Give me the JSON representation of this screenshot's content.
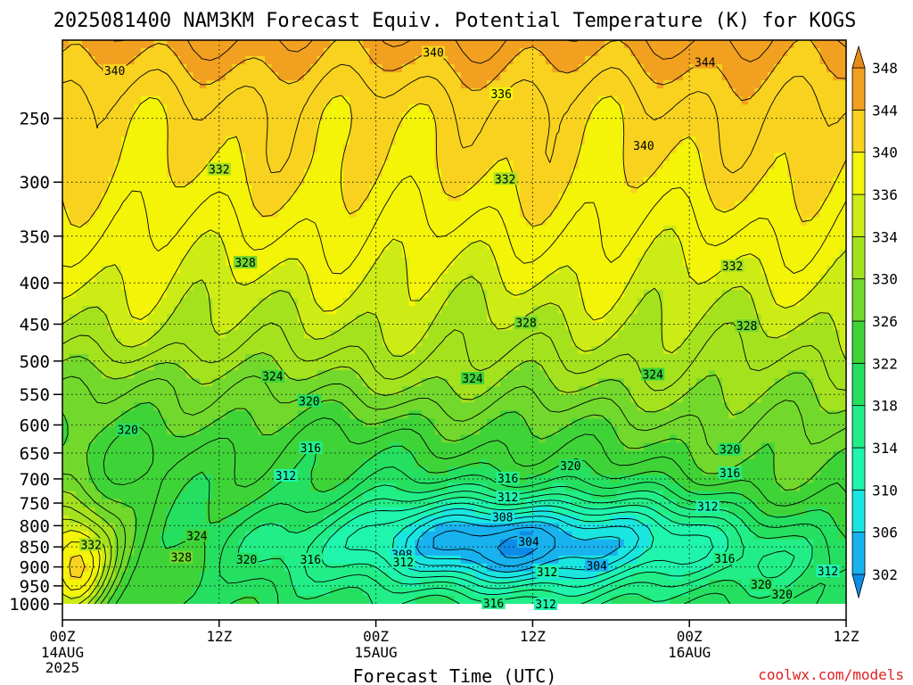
{
  "chart_data": {
    "type": "heatmap",
    "title": "2025081400 NAM3KM Forecast Equiv. Potential Temperature (K) for KOGS",
    "xlabel": "Forecast Time (UTC)",
    "ylabel": "",
    "credit": "coolwx.com/models",
    "x_ticks": [
      {
        "hour": 0,
        "label": "00Z",
        "sub": [
          "14AUG",
          "2025"
        ]
      },
      {
        "hour": 12,
        "label": "12Z",
        "sub": []
      },
      {
        "hour": 24,
        "label": "00Z",
        "sub": [
          "15AUG"
        ]
      },
      {
        "hour": 36,
        "label": "12Z",
        "sub": []
      },
      {
        "hour": 48,
        "label": "00Z",
        "sub": [
          "16AUG"
        ]
      },
      {
        "hour": 60,
        "label": "12Z",
        "sub": []
      }
    ],
    "xlim": [
      0,
      60
    ],
    "y_scale": "log",
    "ylim": [
      1000,
      200
    ],
    "y_ticks": [
      250,
      300,
      350,
      400,
      450,
      500,
      550,
      600,
      650,
      700,
      750,
      800,
      850,
      900,
      950,
      1000
    ],
    "colorbar": {
      "levels": [
        302,
        306,
        310,
        314,
        318,
        322,
        326,
        330,
        334,
        336,
        340,
        344,
        348
      ],
      "colors": [
        "#0c8ce6",
        "#18b2ef",
        "#1ae6e1",
        "#1ff5ad",
        "#22ee88",
        "#25e060",
        "#3ed438",
        "#72d92c",
        "#a5e21e",
        "#cdec16",
        "#f3f408",
        "#f8d21e",
        "#f2a020",
        "#e88a18"
      ]
    },
    "contour_labels": [
      {
        "text": "340",
        "hour": 28.4,
        "p": 207
      },
      {
        "text": "344",
        "hour": 49.2,
        "p": 213
      },
      {
        "text": "340",
        "hour": 4.0,
        "p": 218
      },
      {
        "text": "336",
        "hour": 33.6,
        "p": 233
      },
      {
        "text": "340",
        "hour": 44.5,
        "p": 270
      },
      {
        "text": "332",
        "hour": 12.0,
        "p": 289
      },
      {
        "text": "332",
        "hour": 33.9,
        "p": 297
      },
      {
        "text": "332",
        "hour": 51.3,
        "p": 381
      },
      {
        "text": "328",
        "hour": 14.0,
        "p": 377
      },
      {
        "text": "328",
        "hour": 35.5,
        "p": 448
      },
      {
        "text": "328",
        "hour": 52.4,
        "p": 452
      },
      {
        "text": "324",
        "hour": 16.1,
        "p": 522
      },
      {
        "text": "324",
        "hour": 31.4,
        "p": 525
      },
      {
        "text": "324",
        "hour": 45.2,
        "p": 519
      },
      {
        "text": "320",
        "hour": 18.9,
        "p": 560
      },
      {
        "text": "320",
        "hour": 5.0,
        "p": 608
      },
      {
        "text": "316",
        "hour": 19.0,
        "p": 640
      },
      {
        "text": "320",
        "hour": 51.1,
        "p": 643
      },
      {
        "text": "320",
        "hour": 38.9,
        "p": 674
      },
      {
        "text": "316",
        "hour": 51.1,
        "p": 688
      },
      {
        "text": "312",
        "hour": 17.1,
        "p": 693
      },
      {
        "text": "316",
        "hour": 34.1,
        "p": 698
      },
      {
        "text": "312",
        "hour": 34.1,
        "p": 737
      },
      {
        "text": "312",
        "hour": 49.4,
        "p": 757
      },
      {
        "text": "308",
        "hour": 33.7,
        "p": 780
      },
      {
        "text": "324",
        "hour": 10.3,
        "p": 823
      },
      {
        "text": "304",
        "hour": 35.7,
        "p": 837
      },
      {
        "text": "332",
        "hour": 2.2,
        "p": 844
      },
      {
        "text": "308",
        "hour": 26.0,
        "p": 868
      },
      {
        "text": "328",
        "hour": 9.1,
        "p": 875
      },
      {
        "text": "320",
        "hour": 14.1,
        "p": 880
      },
      {
        "text": "316",
        "hour": 19.0,
        "p": 880
      },
      {
        "text": "316",
        "hour": 50.7,
        "p": 878
      },
      {
        "text": "312",
        "hour": 26.1,
        "p": 887
      },
      {
        "text": "304",
        "hour": 40.9,
        "p": 896
      },
      {
        "text": "312",
        "hour": 37.1,
        "p": 912
      },
      {
        "text": "312",
        "hour": 58.6,
        "p": 910
      },
      {
        "text": "320",
        "hour": 53.5,
        "p": 946
      },
      {
        "text": "320",
        "hour": 55.1,
        "p": 972
      },
      {
        "text": "316",
        "hour": 33.0,
        "p": 997
      },
      {
        "text": "312",
        "hour": 37.0,
        "p": 1000
      }
    ]
  }
}
